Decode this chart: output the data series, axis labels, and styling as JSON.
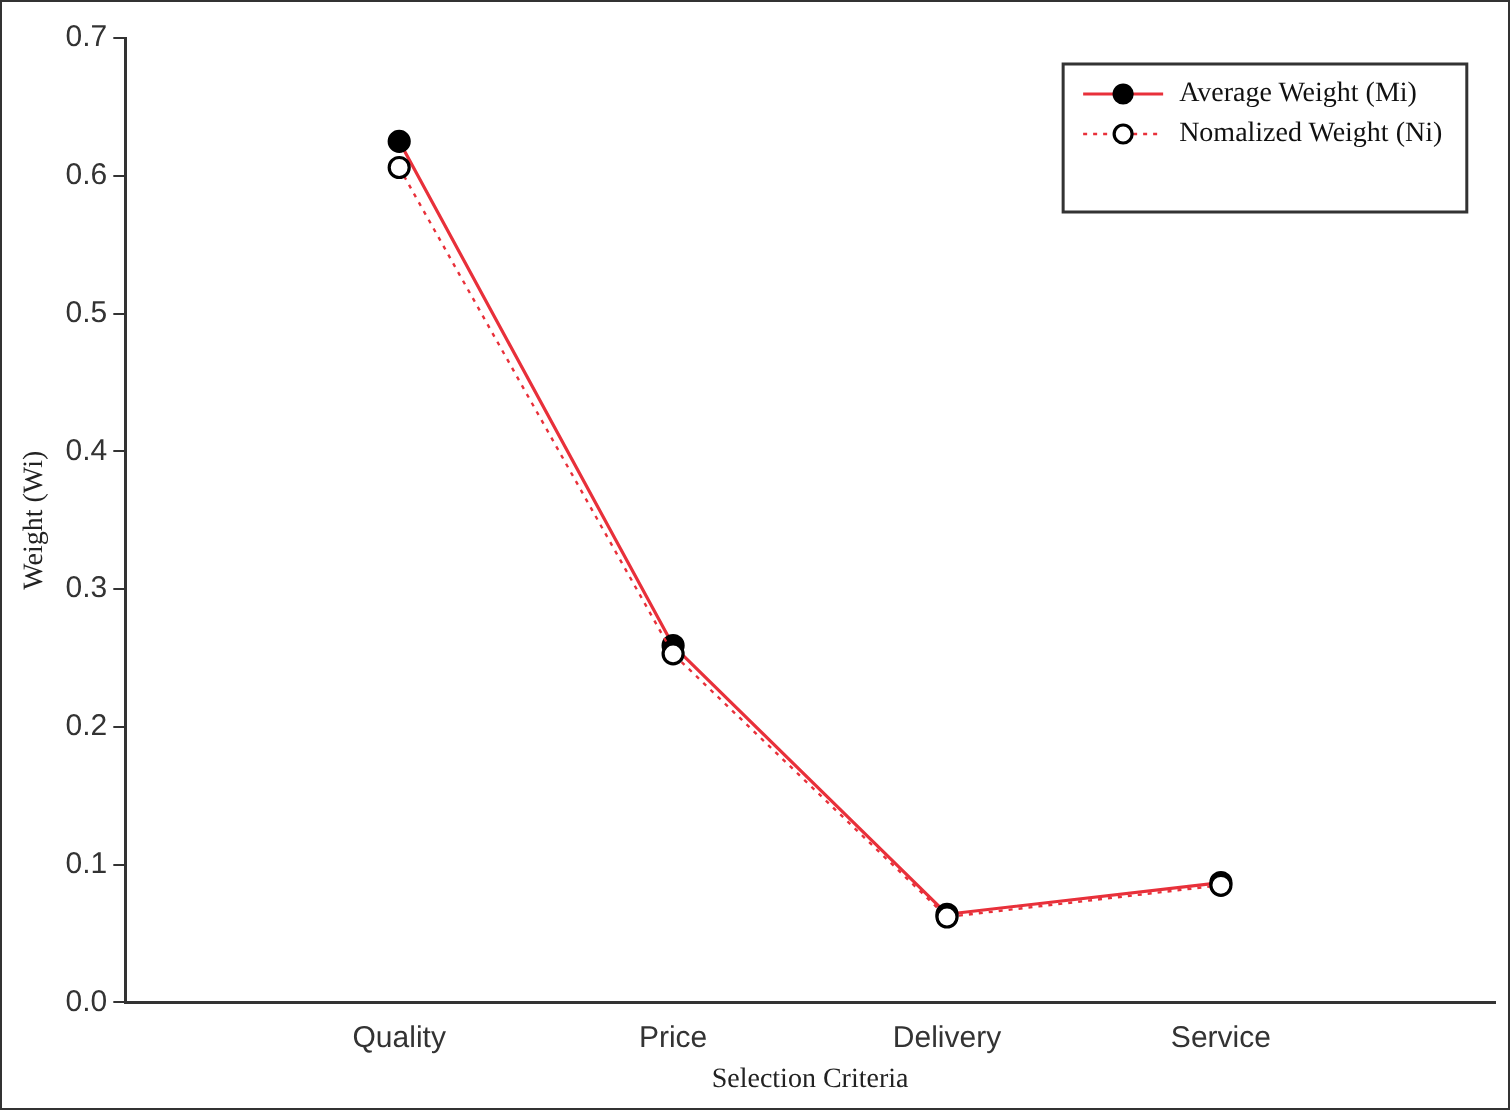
{
  "chart_data": {
    "type": "line",
    "xlabel": "Selection Criteria",
    "ylabel": "Weight (Wi)",
    "categories": [
      "Quality",
      "Price",
      "Delivery",
      "Service"
    ],
    "series": [
      {
        "name": "Average Weight (Mi)",
        "color": "#e8303a",
        "values": [
          0.625,
          0.259,
          0.064,
          0.087
        ],
        "marker": "circle",
        "line_style": "solid"
      },
      {
        "name": "Nomalized Weight (Ni)",
        "color": "#e8303a",
        "values": [
          0.606,
          0.253,
          0.062,
          0.085
        ],
        "marker": "circle",
        "line_style": "dotted"
      }
    ],
    "ylim": [
      0,
      0.7
    ],
    "yticks": [
      {
        "value": 0,
        "label": "0.0"
      },
      {
        "value": 0.1,
        "label": "0.1"
      },
      {
        "value": 0.2,
        "label": "0.2"
      },
      {
        "value": 0.3,
        "label": "0.3"
      },
      {
        "value": 0.4,
        "label": "0.4"
      },
      {
        "value": 0.5,
        "label": "0.5"
      },
      {
        "value": 0.6,
        "label": "0.6"
      },
      {
        "value": 0.7,
        "label": "0.7"
      }
    ],
    "grid": false,
    "legend": "top right"
  }
}
